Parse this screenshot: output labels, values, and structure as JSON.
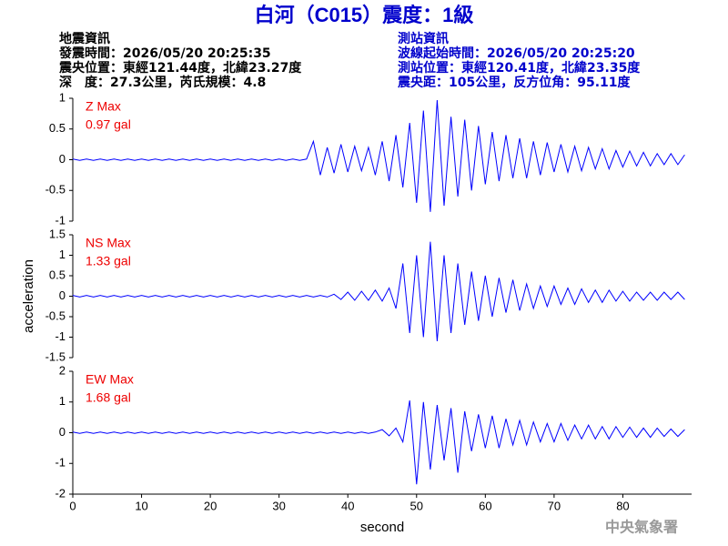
{
  "header": {
    "title": "白河（C015）震度：1級",
    "left": [
      "地震資訊",
      "發震時間：2026/05/20 20:25:35",
      "震央位置：東經121.44度，北緯23.27度",
      "深　度：27.3公里，芮氏規模：4.8"
    ],
    "right": [
      "測站資訊",
      "波線起始時間：2026/05/20 20:25:20",
      "測站位置：東經120.41度，北緯23.35度",
      "震央距：105公里，反方位角：95.11度"
    ]
  },
  "footer": "中央氣象署",
  "chart_data": [
    {
      "type": "line",
      "annotations": [
        "Z Max",
        "0.97 gal"
      ],
      "annotation_color": "#ee0000",
      "x": [
        0,
        1,
        2,
        3,
        4,
        5,
        6,
        7,
        8,
        9,
        10,
        11,
        12,
        13,
        14,
        15,
        16,
        17,
        18,
        19,
        20,
        21,
        22,
        23,
        24,
        25,
        26,
        27,
        28,
        29,
        30,
        31,
        32,
        33,
        34,
        35,
        36,
        37,
        38,
        39,
        40,
        41,
        42,
        43,
        44,
        45,
        46,
        47,
        48,
        49,
        50,
        51,
        52,
        53,
        54,
        55,
        56,
        57,
        58,
        59,
        60,
        61,
        62,
        63,
        64,
        65,
        66,
        67,
        68,
        69,
        70,
        71,
        72,
        73,
        74,
        75,
        76,
        77,
        78,
        79,
        80,
        81,
        82,
        83,
        84,
        85,
        86,
        87,
        88,
        89
      ],
      "series": [
        {
          "color": "#0000ff",
          "values": [
            0.01,
            -0.01,
            0.01,
            -0.01,
            0.01,
            -0.01,
            0.01,
            -0.01,
            0.01,
            -0.01,
            0.01,
            -0.01,
            0.01,
            -0.01,
            0.01,
            -0.01,
            0.01,
            -0.01,
            0.01,
            -0.01,
            0.01,
            -0.01,
            0.01,
            -0.01,
            0.01,
            -0.01,
            0.01,
            -0.01,
            0.01,
            -0.01,
            0.01,
            -0.01,
            0.01,
            -0.01,
            0.01,
            0.3,
            -0.25,
            0.2,
            -0.22,
            0.25,
            -0.2,
            0.22,
            -0.18,
            0.2,
            -0.25,
            0.3,
            -0.35,
            0.4,
            -0.45,
            0.6,
            -0.7,
            0.8,
            -0.85,
            0.97,
            -0.75,
            0.7,
            -0.6,
            0.65,
            -0.5,
            0.55,
            -0.4,
            0.45,
            -0.35,
            0.4,
            -0.3,
            0.35,
            -0.3,
            0.3,
            -0.25,
            0.28,
            -0.2,
            0.25,
            -0.2,
            0.22,
            -0.18,
            0.2,
            -0.15,
            0.18,
            -0.15,
            0.15,
            -0.12,
            0.14,
            -0.1,
            0.12,
            -0.1,
            0.1,
            -0.08,
            0.1,
            -0.08,
            0.08
          ]
        }
      ],
      "xlim": [
        0,
        90
      ],
      "ylim": [
        -1,
        1
      ],
      "yticks": [
        -1,
        -0.5,
        0,
        0.5,
        1
      ]
    },
    {
      "type": "line",
      "annotations": [
        "NS Max",
        "1.33 gal"
      ],
      "annotation_color": "#ee0000",
      "ylabel": "acceleration",
      "x": [
        0,
        1,
        2,
        3,
        4,
        5,
        6,
        7,
        8,
        9,
        10,
        11,
        12,
        13,
        14,
        15,
        16,
        17,
        18,
        19,
        20,
        21,
        22,
        23,
        24,
        25,
        26,
        27,
        28,
        29,
        30,
        31,
        32,
        33,
        34,
        35,
        36,
        37,
        38,
        39,
        40,
        41,
        42,
        43,
        44,
        45,
        46,
        47,
        48,
        49,
        50,
        51,
        52,
        53,
        54,
        55,
        56,
        57,
        58,
        59,
        60,
        61,
        62,
        63,
        64,
        65,
        66,
        67,
        68,
        69,
        70,
        71,
        72,
        73,
        74,
        75,
        76,
        77,
        78,
        79,
        80,
        81,
        82,
        83,
        84,
        85,
        86,
        87,
        88,
        89
      ],
      "series": [
        {
          "color": "#0000ff",
          "values": [
            0.02,
            -0.02,
            0.02,
            -0.02,
            0.02,
            -0.02,
            0.02,
            -0.02,
            0.02,
            -0.02,
            0.02,
            -0.02,
            0.02,
            -0.02,
            0.02,
            -0.02,
            0.02,
            -0.02,
            0.02,
            -0.02,
            0.02,
            -0.02,
            0.02,
            -0.02,
            0.02,
            -0.02,
            0.02,
            -0.02,
            0.02,
            -0.02,
            0.02,
            -0.02,
            0.02,
            -0.02,
            0.02,
            -0.02,
            0.02,
            -0.02,
            0.05,
            -0.08,
            0.1,
            -0.1,
            0.12,
            -0.1,
            0.15,
            -0.12,
            0.2,
            -0.3,
            0.8,
            -0.9,
            1.0,
            -1.0,
            1.33,
            -1.1,
            1.0,
            -0.9,
            0.8,
            -0.7,
            0.6,
            -0.6,
            0.5,
            -0.5,
            0.45,
            -0.4,
            0.4,
            -0.35,
            0.3,
            -0.3,
            0.25,
            -0.25,
            0.25,
            -0.2,
            0.2,
            -0.2,
            0.18,
            -0.15,
            0.15,
            -0.15,
            0.15,
            -0.12,
            0.12,
            -0.12,
            0.1,
            -0.1,
            0.1,
            -0.1,
            0.1,
            -0.08,
            0.1,
            -0.08
          ]
        }
      ],
      "xlim": [
        0,
        90
      ],
      "ylim": [
        -1.5,
        1.5
      ],
      "yticks": [
        -1.5,
        -1,
        -0.5,
        0,
        0.5,
        1,
        1.5
      ]
    },
    {
      "type": "line",
      "annotations": [
        "EW Max",
        "1.68 gal"
      ],
      "annotation_color": "#ee0000",
      "xlabel": "second",
      "x": [
        0,
        1,
        2,
        3,
        4,
        5,
        6,
        7,
        8,
        9,
        10,
        11,
        12,
        13,
        14,
        15,
        16,
        17,
        18,
        19,
        20,
        21,
        22,
        23,
        24,
        25,
        26,
        27,
        28,
        29,
        30,
        31,
        32,
        33,
        34,
        35,
        36,
        37,
        38,
        39,
        40,
        41,
        42,
        43,
        44,
        45,
        46,
        47,
        48,
        49,
        50,
        51,
        52,
        53,
        54,
        55,
        56,
        57,
        58,
        59,
        60,
        61,
        62,
        63,
        64,
        65,
        66,
        67,
        68,
        69,
        70,
        71,
        72,
        73,
        74,
        75,
        76,
        77,
        78,
        79,
        80,
        81,
        82,
        83,
        84,
        85,
        86,
        87,
        88,
        89
      ],
      "series": [
        {
          "color": "#0000ff",
          "values": [
            0.02,
            -0.02,
            0.02,
            -0.02,
            0.02,
            -0.02,
            0.02,
            -0.02,
            0.02,
            -0.02,
            0.02,
            -0.02,
            0.02,
            -0.02,
            0.02,
            -0.02,
            0.02,
            -0.02,
            0.02,
            -0.02,
            0.02,
            -0.02,
            0.02,
            -0.02,
            0.02,
            -0.02,
            0.02,
            -0.02,
            0.02,
            -0.02,
            0.02,
            -0.02,
            0.02,
            -0.02,
            0.02,
            -0.02,
            0.02,
            -0.02,
            0.02,
            -0.02,
            0.02,
            -0.02,
            0.02,
            -0.02,
            0.02,
            0.1,
            -0.1,
            0.15,
            -0.3,
            1.05,
            -1.68,
            1.0,
            -1.2,
            0.9,
            -0.9,
            0.8,
            -1.3,
            0.7,
            -0.6,
            0.6,
            -0.5,
            0.55,
            -0.5,
            0.45,
            -0.4,
            0.4,
            -0.4,
            0.35,
            -0.3,
            0.3,
            -0.3,
            0.3,
            -0.25,
            0.25,
            -0.2,
            0.25,
            -0.2,
            0.2,
            -0.2,
            0.2,
            -0.15,
            0.18,
            -0.15,
            0.15,
            -0.15,
            0.15,
            -0.12,
            0.12,
            -0.12,
            0.1
          ]
        }
      ],
      "xlim": [
        0,
        90
      ],
      "ylim": [
        -2,
        2
      ],
      "yticks": [
        -2,
        -1,
        0,
        1,
        2
      ],
      "xticks": [
        0,
        10,
        20,
        30,
        40,
        50,
        60,
        70,
        80
      ]
    }
  ]
}
